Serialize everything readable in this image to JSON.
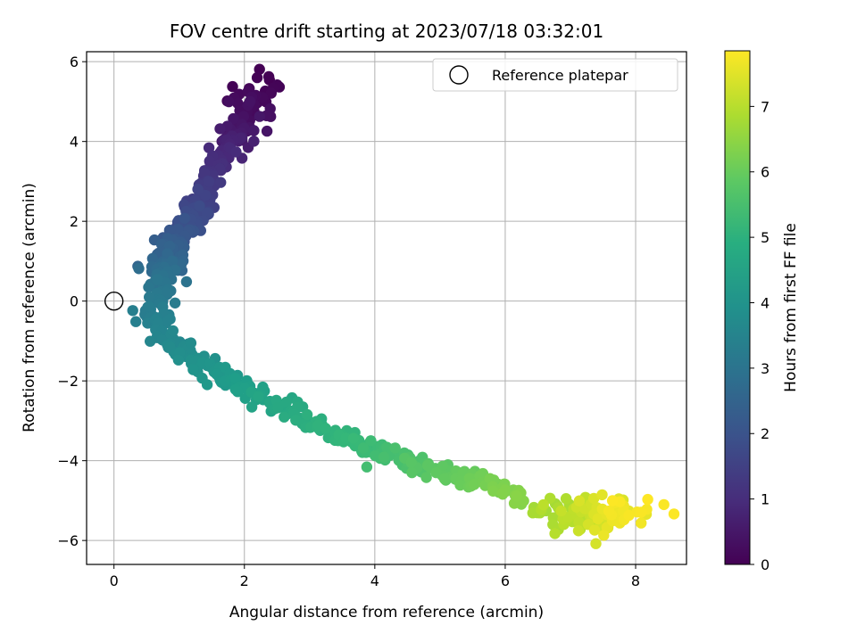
{
  "chart_data": {
    "type": "scatter",
    "title": "FOV centre drift starting at 2023/07/18 03:32:01",
    "xlabel": "Angular distance from reference (arcmin)",
    "ylabel": "Rotation from reference (arcmin)",
    "xlim": [
      -0.42,
      8.78
    ],
    "ylim": [
      -6.6,
      6.25
    ],
    "xticks": [
      0,
      2,
      4,
      6,
      8
    ],
    "yticks": [
      -6,
      -4,
      -2,
      0,
      2,
      4,
      6
    ],
    "grid": true,
    "legend": {
      "position": "top-right",
      "label": "Reference platepar"
    },
    "reference_point": {
      "x": 0,
      "y": 0
    },
    "colorbar": {
      "label": "Hours from first FF file",
      "colormap": "viridis",
      "range": [
        0,
        7.85
      ],
      "ticks": [
        0,
        1,
        2,
        3,
        4,
        5,
        6,
        7
      ]
    },
    "path_anchors": [
      {
        "t": 0.0,
        "x": 2.3,
        "y": 5.6
      },
      {
        "t": 0.5,
        "x": 1.95,
        "y": 4.3
      },
      {
        "t": 1.0,
        "x": 1.6,
        "y": 3.5
      },
      {
        "t": 1.5,
        "x": 1.35,
        "y": 2.5
      },
      {
        "t": 2.0,
        "x": 1.1,
        "y": 1.8
      },
      {
        "t": 2.5,
        "x": 0.8,
        "y": 1.1
      },
      {
        "t": 3.0,
        "x": 0.75,
        "y": 0.5
      },
      {
        "t": 3.3,
        "x": 0.55,
        "y": -0.2
      },
      {
        "t": 3.6,
        "x": 0.8,
        "y": -0.9
      },
      {
        "t": 4.0,
        "x": 1.3,
        "y": -1.6
      },
      {
        "t": 4.5,
        "x": 2.2,
        "y": -2.4
      },
      {
        "t": 5.0,
        "x": 3.2,
        "y": -3.2
      },
      {
        "t": 5.5,
        "x": 4.3,
        "y": -3.9
      },
      {
        "t": 6.0,
        "x": 5.3,
        "y": -4.4
      },
      {
        "t": 6.4,
        "x": 6.1,
        "y": -4.9
      },
      {
        "t": 7.0,
        "x": 7.0,
        "y": -5.4
      },
      {
        "t": 7.6,
        "x": 7.7,
        "y": -5.35
      },
      {
        "t": 7.85,
        "x": 8.1,
        "y": -5.25
      }
    ],
    "n_points": 760
  }
}
